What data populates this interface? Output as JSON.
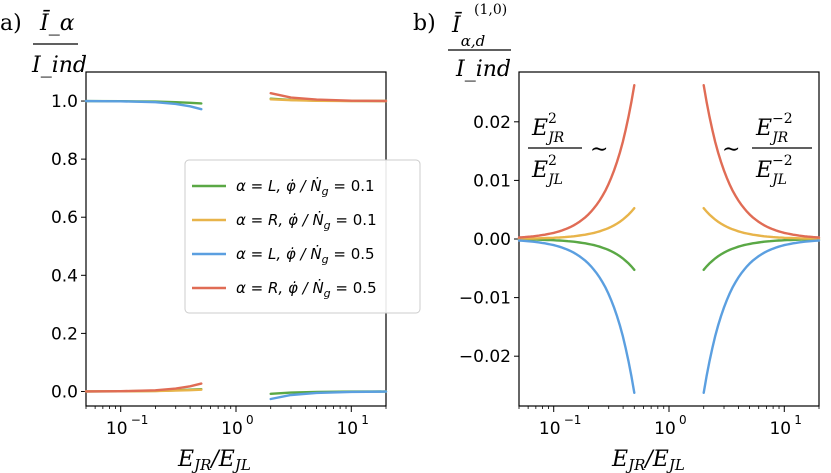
{
  "chart_data": [
    {
      "panel": "a)",
      "type": "line",
      "xscale": "log",
      "xlim": [
        0.05,
        20
      ],
      "ylim": [
        -0.05,
        1.1
      ],
      "xlabel": "E_JR/E_JL",
      "ylabel_top": "Ī_α",
      "ylabel_bottom": "I_ind",
      "yticks": [
        0.0,
        0.2,
        0.4,
        0.6,
        0.8,
        1.0
      ],
      "ytick_labels": [
        "0.0",
        "0.2",
        "0.4",
        "0.6",
        "0.8",
        "1.0"
      ],
      "xticks": [
        0.1,
        1,
        10
      ],
      "xtick_labels": [
        "10",
        "10",
        "10"
      ],
      "xtick_exponents": [
        "−1",
        "0",
        "1"
      ],
      "legend_placement": "center-right",
      "legend": [
        {
          "alpha": "α = L",
          "mid": "φ̇ / Ṅ",
          "sub": "g",
          "val": "= 0.1",
          "color": "#5aa845"
        },
        {
          "alpha": "α = R",
          "mid": "φ̇ / Ṅ",
          "sub": "g",
          "val": "= 0.1",
          "color": "#e8b44a"
        },
        {
          "alpha": "α = L",
          "mid": "φ̇ / Ṅ",
          "sub": "g",
          "val": "= 0.5",
          "color": "#5b9fe0"
        },
        {
          "alpha": "α = R",
          "mid": "φ̇ / Ṅ",
          "sub": "g",
          "val": "= 0.5",
          "color": "#e06c55"
        }
      ],
      "series": [
        {
          "name": "α = L, φ̇/Ṅg = 0.1",
          "color": "#5aa845",
          "segments": [
            {
              "x": [
                0.05,
                0.1,
                0.2,
                0.3,
                0.4,
                0.5
              ],
              "y": [
                0.9998,
                0.9993,
                0.998,
                0.996,
                0.994,
                0.992
              ]
            },
            {
              "x": [
                2,
                3,
                5,
                10,
                20
              ],
              "y": [
                -0.008,
                -0.004,
                -0.0015,
                -0.0004,
                -0.0001
              ]
            },
            {
              "x": [
                0.05,
                0.1,
                0.2,
                0.3,
                0.4,
                0.5
              ],
              "y": [
                0.0002,
                0.0007,
                0.002,
                0.004,
                0.006,
                0.008
              ]
            },
            {
              "x": [
                2,
                3,
                5,
                10,
                20
              ],
              "y": [
                1.008,
                1.004,
                1.0015,
                1.0004,
                1.0001
              ]
            }
          ]
        },
        {
          "name": "α = R, φ̇/Ṅg = 0.1",
          "color": "#e8b44a",
          "segments": [
            {
              "x": [
                0.05,
                0.1,
                0.2,
                0.3,
                0.4,
                0.5
              ],
              "y": [
                0.0002,
                0.0005,
                0.0015,
                0.003,
                0.0045,
                0.006
              ]
            },
            {
              "x": [
                2,
                3,
                5,
                10,
                20
              ],
              "y": [
                1.006,
                1.003,
                1.001,
                1.0003,
                1.0001
              ]
            }
          ]
        },
        {
          "name": "α = L, φ̇/Ṅg = 0.5",
          "color": "#5b9fe0",
          "segments": [
            {
              "x": [
                0.05,
                0.1,
                0.2,
                0.3,
                0.4,
                0.5
              ],
              "y": [
                0.9997,
                0.999,
                0.996,
                0.99,
                0.982,
                0.972
              ]
            },
            {
              "x": [
                2,
                3,
                5,
                10,
                20
              ],
              "y": [
                -0.026,
                -0.012,
                -0.005,
                -0.0013,
                -0.0003
              ]
            }
          ]
        },
        {
          "name": "α = R, φ̇/Ṅg = 0.5",
          "color": "#e06c55",
          "segments": [
            {
              "x": [
                0.05,
                0.1,
                0.2,
                0.3,
                0.4,
                0.5
              ],
              "y": [
                0.0003,
                0.001,
                0.004,
                0.01,
                0.018,
                0.027
              ]
            },
            {
              "x": [
                2,
                3,
                5,
                10,
                20
              ],
              "y": [
                1.027,
                1.012,
                1.005,
                1.0013,
                1.0003
              ]
            }
          ]
        }
      ]
    },
    {
      "panel": "b)",
      "type": "line",
      "xscale": "log",
      "xlim": [
        0.05,
        20
      ],
      "ylim": [
        -0.0285,
        0.0285
      ],
      "xlabel": "E_JR/E_JL",
      "ylabel_top": "Ī",
      "ylabel_sup": "(1,0)",
      "ylabel_sub": "α,d",
      "ylabel_bottom": "I_ind",
      "yticks": [
        -0.02,
        -0.01,
        0.0,
        0.01,
        0.02
      ],
      "ytick_labels": [
        "−0.02",
        "−0.01",
        "0.00",
        "0.01",
        "0.02"
      ],
      "xticks": [
        0.1,
        1,
        10
      ],
      "xtick_labels": [
        "10",
        "10",
        "10"
      ],
      "xtick_exponents": [
        "−1",
        "0",
        "1"
      ],
      "annotations": {
        "left_num": "E",
        "left_num_sup": "2",
        "left_num_sub": "JR",
        "left_den": "E",
        "left_den_sup": "2",
        "left_den_sub": "JL",
        "tilde": "∼",
        "right_num": "E",
        "right_num_sup": "−2",
        "right_num_sub": "JR",
        "right_den": "E",
        "right_den_sup": "−2",
        "right_den_sub": "JL"
      },
      "series": [
        {
          "name": "α = L, φ̇/Ṅg = 0.1",
          "color": "#5aa845",
          "amp": -0.021,
          "power": 2
        },
        {
          "name": "α = R, φ̇/Ṅg = 0.1",
          "color": "#e8b44a",
          "amp": 0.021,
          "power": 2
        },
        {
          "name": "α = L, φ̇/Ṅg = 0.5",
          "color": "#5b9fe0",
          "amp": -0.105,
          "power": 2
        },
        {
          "name": "α = R, φ̇/Ṅg = 0.5",
          "color": "#e06c55",
          "amp": 0.105,
          "power": 2
        }
      ]
    }
  ]
}
